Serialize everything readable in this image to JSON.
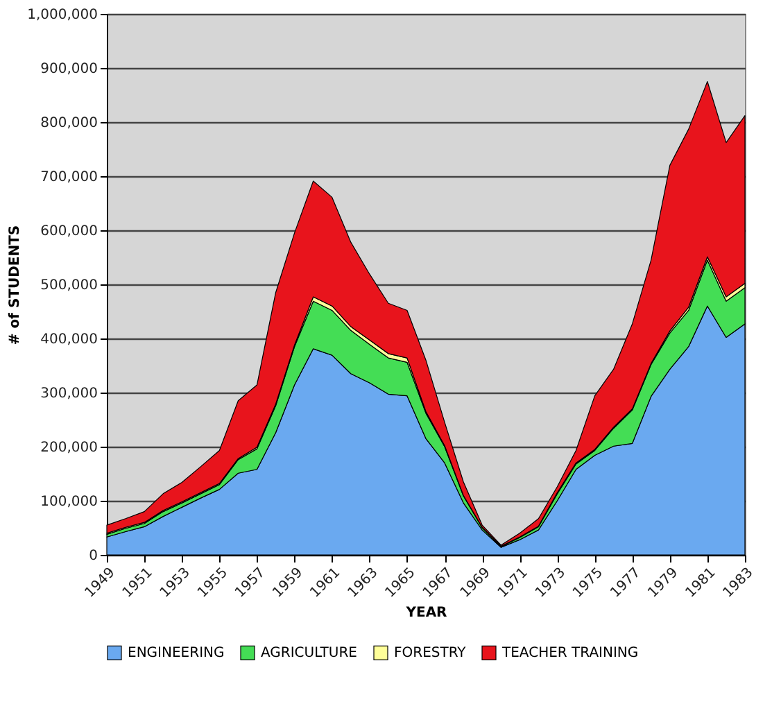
{
  "chart_data": {
    "type": "area",
    "stacked": true,
    "xlabel": "YEAR",
    "ylabel": "# of STUDENTS",
    "x": [
      1949,
      1950,
      1951,
      1952,
      1953,
      1954,
      1955,
      1956,
      1957,
      1958,
      1959,
      1960,
      1961,
      1962,
      1963,
      1964,
      1965,
      1966,
      1967,
      1968,
      1969,
      1970,
      1971,
      1972,
      1973,
      1974,
      1975,
      1976,
      1977,
      1978,
      1979,
      1980,
      1981,
      1982,
      1983
    ],
    "xlim": [
      1949,
      1983
    ],
    "xticks": [
      1949,
      1951,
      1953,
      1955,
      1957,
      1959,
      1961,
      1963,
      1965,
      1967,
      1969,
      1971,
      1973,
      1975,
      1977,
      1979,
      1981,
      1983
    ],
    "ylim": [
      0,
      1000000
    ],
    "yticks": [
      0,
      {
        "value": 100000,
        "label": "100,000"
      },
      {
        "value": 200000,
        "label": "200,000"
      },
      {
        "value": 300000,
        "label": "300,000"
      },
      {
        "value": 400000,
        "label": "400,000"
      },
      {
        "value": 500000,
        "label": "500,000"
      },
      {
        "value": 600000,
        "label": "600,000"
      },
      {
        "value": 700000,
        "label": "700,000"
      },
      {
        "value": 800000,
        "label": "800,000"
      },
      {
        "value": 900000,
        "label": "900,000"
      },
      {
        "value": 1000000,
        "label": "1,000,000"
      }
    ],
    "grid": "y",
    "legend": "bottom",
    "series": [
      {
        "name": "ENGINEERING",
        "color": "#6aa9f0",
        "values": [
          33000,
          43000,
          52000,
          71000,
          88000,
          105000,
          121000,
          151000,
          158000,
          226000,
          314000,
          381000,
          369000,
          335000,
          318000,
          297000,
          294000,
          215000,
          170000,
          96000,
          46000,
          14000,
          28000,
          46000,
          100000,
          158000,
          184000,
          201000,
          206000,
          293000,
          343000,
          385000,
          460000,
          402000,
          427000
        ]
      },
      {
        "name": "AGRICULTURE",
        "color": "#44dd55",
        "values": [
          5000,
          6000,
          6000,
          9000,
          8000,
          8000,
          9000,
          25000,
          38000,
          50000,
          71000,
          88000,
          83000,
          80000,
          71000,
          67000,
          62000,
          47000,
          30000,
          13000,
          4000,
          1000,
          4000,
          6000,
          13000,
          10000,
          9000,
          33000,
          62000,
          59000,
          67000,
          67000,
          85000,
          67000,
          67000
        ]
      },
      {
        "name": "FORESTRY",
        "color": "#ffff99",
        "values": [
          2000,
          2000,
          2000,
          2000,
          2000,
          2000,
          2000,
          2000,
          3000,
          3000,
          3000,
          8000,
          8000,
          7000,
          8000,
          8000,
          8000,
          3000,
          2000,
          1000,
          1000,
          1000,
          1000,
          1000,
          2000,
          2000,
          2000,
          2000,
          2000,
          2000,
          4000,
          6000,
          6000,
          8000,
          8000
        ]
      },
      {
        "name": "TEACHER TRAINING",
        "color": "#e8141c",
        "values": [
          15000,
          16000,
          20000,
          31000,
          36000,
          48000,
          61000,
          107000,
          115000,
          206000,
          207000,
          214000,
          201000,
          156000,
          122000,
          93000,
          88000,
          95000,
          43000,
          25000,
          4000,
          2000,
          7000,
          14000,
          11000,
          23000,
          99000,
          107000,
          157000,
          191000,
          306000,
          329000,
          324000,
          285000,
          310000
        ]
      }
    ]
  }
}
